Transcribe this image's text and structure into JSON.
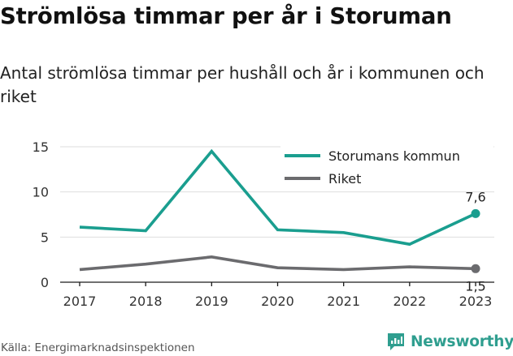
{
  "header": {
    "title": "Strömlösa timmar per år i Storuman",
    "subtitle": "Antal strömlösa timmar per hushåll och år i kommunen och riket"
  },
  "footer": {
    "source": "Källa: Energimarknadsinspektionen",
    "brand": "Newsworthy",
    "brand_color": "#2f9e8f",
    "brand_icon": "newsworthy-logo-icon"
  },
  "chart_data": {
    "type": "line",
    "x": [
      "2017",
      "2018",
      "2019",
      "2020",
      "2021",
      "2022",
      "2023"
    ],
    "ylim": [
      0,
      15
    ],
    "yticks": [
      "0",
      "5",
      "10",
      "15"
    ],
    "grid": true,
    "legend_position": "top-right",
    "series": [
      {
        "name": "Storumans kommun",
        "color": "#1a9e8f",
        "values": [
          6.1,
          5.7,
          14.5,
          5.8,
          5.5,
          4.2,
          7.6
        ],
        "end_label": "7,6"
      },
      {
        "name": "Riket",
        "color": "#6b6b6e",
        "values": [
          1.4,
          2.0,
          2.8,
          1.6,
          1.4,
          1.7,
          1.5
        ],
        "end_label": "1,5"
      }
    ]
  }
}
